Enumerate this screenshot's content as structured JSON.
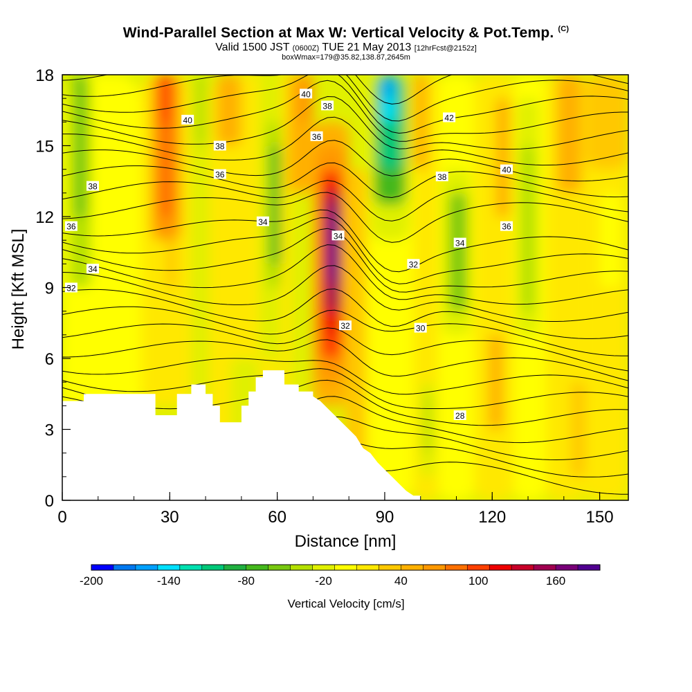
{
  "header": {
    "title": "Wind-Parallel Section at Max W: Vertical Velocity & Pot.Temp.",
    "copyright": "(C)",
    "valid_main": "Valid 1500 JST",
    "valid_zulu": "(0600Z)",
    "valid_date": "TUE 21 May 2013",
    "forecast": "[12hrFcst@2152z]",
    "box_info": "boxWmax=179@35.82,138.87,2645m"
  },
  "chart_data": {
    "type": "heatmap",
    "xlabel": "Distance [nm]",
    "ylabel": "Height [Kft MSL]",
    "xlim": [
      0,
      158
    ],
    "ylim": [
      0,
      18
    ],
    "x_ticks": [
      "0",
      "30",
      "60",
      "90",
      "120",
      "150"
    ],
    "y_ticks": [
      "0",
      "3",
      "6",
      "9",
      "12",
      "15",
      "18"
    ],
    "colorbar": {
      "label": "Vertical Velocity [cm/s]",
      "tick_labels": [
        "-200",
        "-140",
        "-80",
        "-20",
        "40",
        "100",
        "160"
      ],
      "colors": [
        "#0000ff",
        "#0078f0",
        "#00a0ff",
        "#00e0ff",
        "#00e0b0",
        "#00c878",
        "#20b040",
        "#44b81c",
        "#78c810",
        "#b4e000",
        "#e0f000",
        "#ffff00",
        "#ffe800",
        "#ffc800",
        "#ffb000",
        "#ff9800",
        "#ff7000",
        "#ff4000",
        "#ee0000",
        "#c80028",
        "#a00050",
        "#780078",
        "#500090"
      ]
    },
    "theta_labels": [
      {
        "v": "40",
        "x": 35,
        "y": 16.1
      },
      {
        "v": "38",
        "x": 8.5,
        "y": 13.3
      },
      {
        "v": "36",
        "x": 2.5,
        "y": 11.6
      },
      {
        "v": "34",
        "x": 8.5,
        "y": 9.8
      },
      {
        "v": "32",
        "x": 2.5,
        "y": 9.0
      },
      {
        "v": "38",
        "x": 44,
        "y": 15.0
      },
      {
        "v": "36",
        "x": 44,
        "y": 13.8
      },
      {
        "v": "34",
        "x": 56,
        "y": 11.8
      },
      {
        "v": "40",
        "x": 68,
        "y": 17.2
      },
      {
        "v": "38",
        "x": 74,
        "y": 16.7
      },
      {
        "v": "36",
        "x": 71,
        "y": 15.4
      },
      {
        "v": "34",
        "x": 77,
        "y": 11.2
      },
      {
        "v": "32",
        "x": 79,
        "y": 7.4
      },
      {
        "v": "42",
        "x": 108,
        "y": 16.2
      },
      {
        "v": "40",
        "x": 124,
        "y": 14.0
      },
      {
        "v": "38",
        "x": 106,
        "y": 13.7
      },
      {
        "v": "36",
        "x": 124,
        "y": 11.6
      },
      {
        "v": "34",
        "x": 111,
        "y": 10.9
      },
      {
        "v": "32",
        "x": 98,
        "y": 10.0
      },
      {
        "v": "30",
        "x": 100,
        "y": 7.3
      },
      {
        "v": "28",
        "x": 111,
        "y": 3.6
      }
    ],
    "w_cells": [
      {
        "x0": 0,
        "x1": 6,
        "y0": 4,
        "y1": 7,
        "w": 20
      },
      {
        "x0": 0,
        "x1": 22,
        "y0": 0,
        "y1": 18,
        "w": 0
      },
      {
        "x0": 2,
        "x1": 8,
        "y0": 9,
        "y1": 18,
        "w": -40
      },
      {
        "x0": 3,
        "x1": 7,
        "y0": 12,
        "y1": 18,
        "w": -55
      },
      {
        "x0": 13,
        "x1": 22,
        "y0": 10,
        "y1": 16,
        "w": -10
      },
      {
        "x0": 22,
        "x1": 36,
        "y0": 4,
        "y1": 18,
        "w": 20
      },
      {
        "x0": 25,
        "x1": 33,
        "y0": 11,
        "y1": 18,
        "w": 55
      },
      {
        "x0": 27,
        "x1": 31,
        "y0": 12,
        "y1": 18,
        "w": 75
      },
      {
        "x0": 27,
        "x1": 30,
        "y0": 16,
        "y1": 18,
        "w": 90
      },
      {
        "x0": 29,
        "x1": 32,
        "y0": 9,
        "y1": 11,
        "w": 30
      },
      {
        "x0": 36,
        "x1": 41,
        "y0": 0,
        "y1": 18,
        "w": -15
      },
      {
        "x0": 37,
        "x1": 40,
        "y0": 15,
        "y1": 18,
        "w": -35
      },
      {
        "x0": 41,
        "x1": 60,
        "y0": 0,
        "y1": 18,
        "w": 20
      },
      {
        "x0": 43,
        "x1": 50,
        "y0": 15,
        "y1": 18,
        "w": 40
      },
      {
        "x0": 47,
        "x1": 52,
        "y0": 2,
        "y1": 6,
        "w": -15
      },
      {
        "x0": 50,
        "x1": 55,
        "y0": 4,
        "y1": 6,
        "w": -30
      },
      {
        "x0": 55,
        "x1": 61,
        "y0": 6,
        "y1": 18,
        "w": -20
      },
      {
        "x0": 57,
        "x1": 61,
        "y0": 9,
        "y1": 16,
        "w": -40
      },
      {
        "x0": 58,
        "x1": 61,
        "y0": 10,
        "y1": 15,
        "w": -65
      },
      {
        "x0": 61,
        "x1": 64,
        "y0": 0,
        "y1": 18,
        "w": 10
      },
      {
        "x0": 63,
        "x1": 70,
        "y0": 13,
        "y1": 18,
        "w": 40
      },
      {
        "x0": 66,
        "x1": 70,
        "y0": 16,
        "y1": 18,
        "w": 65
      },
      {
        "x0": 70,
        "x1": 80,
        "y0": 4,
        "y1": 16,
        "w": 40
      },
      {
        "x0": 71,
        "x1": 79,
        "y0": 5,
        "y1": 15,
        "w": 60
      },
      {
        "x0": 72,
        "x1": 78,
        "y0": 6,
        "y1": 14,
        "w": 90
      },
      {
        "x0": 73,
        "x1": 78,
        "y0": 7,
        "y1": 13.5,
        "w": 115
      },
      {
        "x0": 73.5,
        "x1": 77.5,
        "y0": 8,
        "y1": 13,
        "w": 140
      },
      {
        "x0": 74,
        "x1": 77,
        "y0": 9,
        "y1": 12.5,
        "w": 160
      },
      {
        "x0": 74.5,
        "x1": 76.5,
        "y0": 9.5,
        "y1": 12,
        "w": 179
      },
      {
        "x0": 79,
        "x1": 85,
        "y0": 0,
        "y1": 14,
        "w": 30
      },
      {
        "x0": 85,
        "x1": 98,
        "y0": 0,
        "y1": 18,
        "w": 0
      },
      {
        "x0": 86,
        "x1": 97,
        "y0": 11,
        "y1": 18,
        "w": -30
      },
      {
        "x0": 87,
        "x1": 96,
        "y0": 12.5,
        "y1": 18,
        "w": -70
      },
      {
        "x0": 88,
        "x1": 95,
        "y0": 14,
        "y1": 18,
        "w": -110
      },
      {
        "x0": 89,
        "x1": 93,
        "y0": 16,
        "y1": 18,
        "w": -145
      },
      {
        "x0": 90,
        "x1": 92,
        "y0": 17,
        "y1": 18,
        "w": -170
      },
      {
        "x0": 98,
        "x1": 105,
        "y0": 0,
        "y1": 18,
        "w": 20
      },
      {
        "x0": 98,
        "x1": 102,
        "y0": 14,
        "y1": 18,
        "w": 45
      },
      {
        "x0": 100,
        "x1": 104,
        "y0": 1,
        "y1": 5,
        "w": -15
      },
      {
        "x0": 101,
        "x1": 103,
        "y0": 2,
        "y1": 4.5,
        "w": -40
      },
      {
        "x0": 105,
        "x1": 115,
        "y0": 0,
        "y1": 18,
        "w": 0
      },
      {
        "x0": 106,
        "x1": 114,
        "y0": 7,
        "y1": 14,
        "w": -30
      },
      {
        "x0": 108,
        "x1": 113,
        "y0": 8,
        "y1": 13,
        "w": -55
      },
      {
        "x0": 115,
        "x1": 126,
        "y0": 0,
        "y1": 18,
        "w": 10
      },
      {
        "x0": 119,
        "x1": 123,
        "y0": 3,
        "y1": 7,
        "w": 40
      },
      {
        "x0": 121,
        "x1": 125,
        "y0": 12,
        "y1": 17,
        "w": 40
      },
      {
        "x0": 126,
        "x1": 135,
        "y0": 0,
        "y1": 18,
        "w": 0
      },
      {
        "x0": 127,
        "x1": 133,
        "y0": 7,
        "y1": 17,
        "w": -25
      },
      {
        "x0": 128,
        "x1": 132,
        "y0": 8,
        "y1": 15,
        "w": -45
      },
      {
        "x0": 135,
        "x1": 146,
        "y0": 0,
        "y1": 18,
        "w": 20
      },
      {
        "x0": 138,
        "x1": 145,
        "y0": 13,
        "y1": 18,
        "w": 40
      },
      {
        "x0": 142,
        "x1": 146,
        "y0": 1,
        "y1": 5,
        "w": 30
      },
      {
        "x0": 146,
        "x1": 158,
        "y0": 0,
        "y1": 18,
        "w": 10
      },
      {
        "x0": 146,
        "x1": 158,
        "y0": 14,
        "y1": 18,
        "w": 30
      },
      {
        "x0": 150,
        "x1": 156,
        "y0": 9,
        "y1": 13,
        "w": -10
      }
    ],
    "terrain": [
      [
        0,
        4.2
      ],
      [
        6,
        4.2
      ],
      [
        6,
        4.5
      ],
      [
        26,
        4.5
      ],
      [
        26,
        3.6
      ],
      [
        32,
        3.6
      ],
      [
        32,
        4.5
      ],
      [
        36,
        4.5
      ],
      [
        36,
        4.9
      ],
      [
        40,
        4.9
      ],
      [
        40,
        4.5
      ],
      [
        42,
        4.5
      ],
      [
        42,
        4.0
      ],
      [
        44,
        4.0
      ],
      [
        44,
        3.3
      ],
      [
        50,
        3.3
      ],
      [
        50,
        4.0
      ],
      [
        52,
        4.0
      ],
      [
        52,
        4.6
      ],
      [
        54,
        4.6
      ],
      [
        54,
        5.2
      ],
      [
        56,
        5.2
      ],
      [
        56,
        5.5
      ],
      [
        62,
        5.5
      ],
      [
        62,
        4.9
      ],
      [
        66,
        4.9
      ],
      [
        66,
        4.6
      ],
      [
        70,
        4.6
      ],
      [
        70,
        4.4
      ],
      [
        72,
        4.2
      ],
      [
        74,
        3.9
      ],
      [
        76,
        3.6
      ],
      [
        78,
        3.3
      ],
      [
        80,
        3.0
      ],
      [
        82,
        2.7
      ],
      [
        84,
        2.2
      ],
      [
        86,
        2.0
      ],
      [
        88,
        1.6
      ],
      [
        90,
        1.3
      ],
      [
        92,
        1.0
      ],
      [
        94,
        0.7
      ],
      [
        96,
        0.4
      ],
      [
        98,
        0.2
      ],
      [
        100,
        0.2
      ],
      [
        100,
        0
      ],
      [
        0,
        0
      ]
    ]
  }
}
